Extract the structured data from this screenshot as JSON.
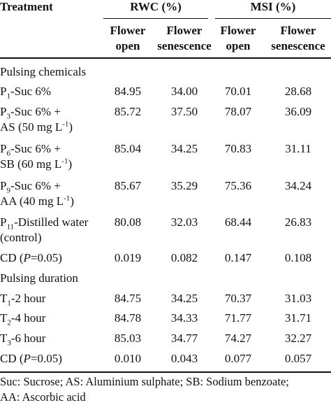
{
  "header": {
    "treatment": "Treatment",
    "rwc": "RWC (%)",
    "msi": "MSI (%)",
    "sub": [
      {
        "l1": "Flower",
        "l2": "open"
      },
      {
        "l1": "Flower",
        "l2": "senescence"
      },
      {
        "l1": "Flower",
        "l2": "open"
      },
      {
        "l1": "Flower",
        "l2": "senescence"
      }
    ]
  },
  "sections": [
    {
      "title": "Pulsing chemicals",
      "rows": [
        {
          "p": "P",
          "sub": "1",
          "rest": "-Suc 6%",
          "line2": "",
          "values": [
            "84.95",
            "34.00",
            "70.01",
            "28.68"
          ]
        },
        {
          "p": "P",
          "sub": "3",
          "rest": "-Suc 6% +",
          "line2": "AS (50 mg L",
          "sup": "-1",
          "line2_end": ")",
          "values": [
            "85.72",
            "37.50",
            "78.07",
            "36.09"
          ]
        },
        {
          "p": "P",
          "sub": "6",
          "rest": "-Suc 6% +",
          "line2": "SB (60 mg L",
          "sup": "-1",
          "line2_end": ")",
          "values": [
            "85.04",
            "34.25",
            "70.83",
            "31.11"
          ]
        },
        {
          "p": "P",
          "sub": "9",
          "rest": "-Suc 6% +",
          "line2": "AA (40 mg L",
          "sup": "-1",
          "line2_end": ")",
          "values": [
            "85.67",
            "35.29",
            "75.36",
            "34.24"
          ]
        },
        {
          "p": "P",
          "sub": "11",
          "rest": "-Distilled water",
          "line2": "(control)",
          "values": [
            "80.08",
            "32.03",
            "68.44",
            "26.83"
          ]
        }
      ],
      "cd": {
        "label_pre": "CD (",
        "label_p": "P",
        "label_post": "=0.05)",
        "values": [
          "0.019",
          "0.082",
          "0.147",
          "0.108"
        ]
      }
    },
    {
      "title": "Pulsing  duration",
      "rows": [
        {
          "p": "T",
          "sub": "1",
          "rest": "-2 hour",
          "values": [
            "84.75",
            "34.25",
            "70.37",
            "31.03"
          ]
        },
        {
          "p": "T",
          "sub": "2",
          "rest": "-4 hour",
          "values": [
            "84.78",
            "34.33",
            "71.77",
            "31.71"
          ]
        },
        {
          "p": "T",
          "sub": "3",
          "rest": "-6 hour",
          "values": [
            "85.03",
            "34.77",
            "74.27",
            "32.27"
          ]
        }
      ],
      "cd": {
        "label_pre": "CD (",
        "label_p": "P",
        "label_post": "=0.05)",
        "values": [
          "0.010",
          "0.043",
          "0.077",
          "0.057"
        ]
      }
    }
  ],
  "footnote": {
    "line1": "Suc: Sucrose; AS: Aluminium sulphate; SB: Sodium benzoate;",
    "line2": "AA: Ascorbic acid"
  }
}
